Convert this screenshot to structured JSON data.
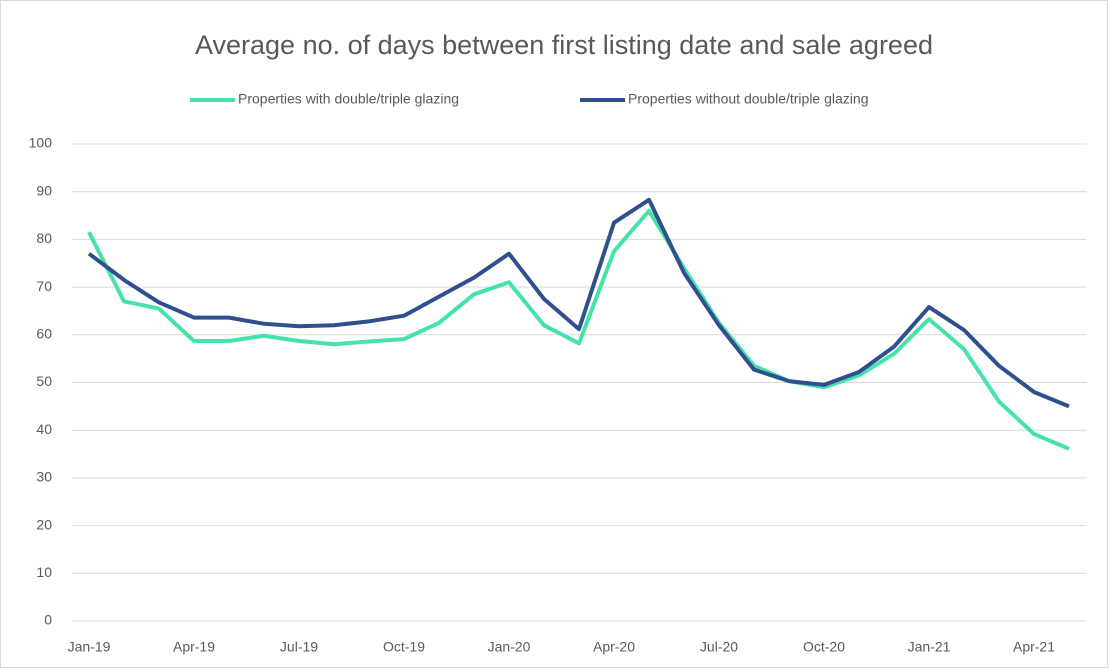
{
  "chart_data": {
    "type": "line",
    "title": "Average no. of days between first listing date and sale agreed",
    "categories": [
      "Jan-19",
      null,
      null,
      "Apr-19",
      null,
      null,
      "Jul-19",
      null,
      null,
      "Oct-19",
      null,
      null,
      "Jan-20",
      null,
      null,
      "Apr-20",
      null,
      null,
      "Jul-20",
      null,
      null,
      "Oct-20",
      null,
      null,
      "Jan-21",
      null,
      null,
      "Apr-21",
      null
    ],
    "series": [
      {
        "name": "Properties with double/triple glazing",
        "color": "#45e3a8",
        "values": [
          81.5,
          67,
          65.5,
          58.7,
          58.7,
          59.8,
          58.7,
          58,
          58.6,
          59.1,
          62.5,
          68.5,
          71,
          62,
          58.2,
          77.5,
          86,
          74,
          62.5,
          53.5,
          50.3,
          49,
          51.5,
          56,
          63.3,
          57,
          46,
          39.2,
          36.1
        ]
      },
      {
        "name": "Properties without double/triple glazing",
        "color": "#2f4f8f",
        "values": [
          77,
          71.5,
          66.8,
          63.6,
          63.6,
          62.3,
          61.8,
          62,
          62.8,
          64,
          68,
          72,
          77,
          67.5,
          61.2,
          83.5,
          88.3,
          73,
          62,
          52.7,
          50.3,
          49.5,
          52.2,
          57.5,
          65.8,
          61,
          53.5,
          48,
          45
        ]
      }
    ],
    "ylim": [
      0,
      100
    ],
    "yticks": [
      0,
      10,
      20,
      30,
      40,
      50,
      60,
      70,
      80,
      90,
      100
    ],
    "grid": true,
    "legend": "top"
  }
}
